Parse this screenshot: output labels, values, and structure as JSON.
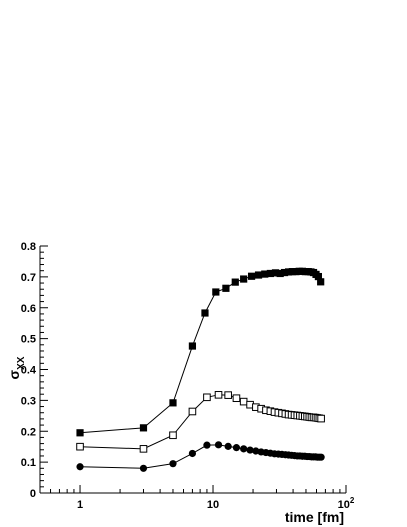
{
  "chart_data": {
    "type": "scatter",
    "xscale": "log",
    "xlim": [
      0.5,
      100
    ],
    "ylim": [
      0,
      0.8
    ],
    "xlabel": "time [fm]",
    "ylabel": "σ",
    "ylabel_sub": "XX",
    "x_ticks": [
      {
        "value": 1,
        "label": "1",
        "sup": ""
      },
      {
        "value": 10,
        "label": "10",
        "sup": ""
      },
      {
        "value": 100,
        "label": "10",
        "sup": "2"
      }
    ],
    "y_ticks": [
      {
        "value": 0,
        "label": "0"
      },
      {
        "value": 0.1,
        "label": "0.1"
      },
      {
        "value": 0.2,
        "label": "0.2"
      },
      {
        "value": 0.3,
        "label": "0.3"
      },
      {
        "value": 0.4,
        "label": "0.4"
      },
      {
        "value": 0.5,
        "label": "0.5"
      },
      {
        "value": 0.6,
        "label": "0.6"
      },
      {
        "value": 0.7,
        "label": "0.7"
      },
      {
        "value": 0.8,
        "label": "0.8"
      }
    ],
    "grid": false,
    "legend": "none",
    "series": [
      {
        "marker": "filled-square",
        "color": "#000000",
        "x": [
          1,
          3,
          5,
          7,
          8.7,
          10.5,
          12.5,
          14.7,
          17,
          19.5,
          22,
          24.5,
          27,
          29.5,
          32,
          34.5,
          37,
          39.5,
          42,
          44.5,
          47,
          49.5,
          52,
          54.5,
          57,
          59.5,
          62,
          64.5
        ],
        "y": [
          0.195,
          0.211,
          0.292,
          0.476,
          0.583,
          0.651,
          0.663,
          0.683,
          0.693,
          0.702,
          0.706,
          0.709,
          0.711,
          0.713,
          0.711,
          0.714,
          0.716,
          0.717,
          0.717,
          0.718,
          0.718,
          0.717,
          0.717,
          0.716,
          0.714,
          0.708,
          0.701,
          0.684
        ]
      },
      {
        "marker": "open-square",
        "color": "#000000",
        "x": [
          1,
          3,
          5,
          7,
          9,
          11,
          13,
          15,
          17,
          19,
          21,
          23,
          25,
          27,
          29,
          31,
          33,
          35,
          37,
          39,
          41,
          43,
          45,
          47,
          49,
          51,
          53,
          55,
          57,
          59,
          61,
          63,
          65
        ],
        "y": [
          0.15,
          0.143,
          0.187,
          0.264,
          0.31,
          0.318,
          0.317,
          0.307,
          0.296,
          0.286,
          0.278,
          0.273,
          0.268,
          0.265,
          0.262,
          0.26,
          0.258,
          0.256,
          0.254,
          0.253,
          0.252,
          0.251,
          0.25,
          0.249,
          0.248,
          0.247,
          0.246,
          0.245,
          0.245,
          0.244,
          0.243,
          0.242,
          0.241
        ]
      },
      {
        "marker": "filled-circle",
        "color": "#000000",
        "x": [
          1,
          3,
          5,
          7,
          9,
          11,
          13,
          15,
          17,
          19,
          21,
          23,
          25,
          27,
          29,
          31,
          33,
          35,
          37,
          39,
          41,
          43,
          45,
          47,
          49,
          51,
          53,
          55,
          57,
          59,
          61,
          63,
          65
        ],
        "y": [
          0.085,
          0.08,
          0.095,
          0.128,
          0.155,
          0.156,
          0.151,
          0.147,
          0.143,
          0.139,
          0.136,
          0.133,
          0.131,
          0.129,
          0.127,
          0.126,
          0.125,
          0.124,
          0.123,
          0.122,
          0.121,
          0.12,
          0.12,
          0.119,
          0.119,
          0.118,
          0.118,
          0.117,
          0.117,
          0.117,
          0.116,
          0.116,
          0.116
        ]
      }
    ]
  }
}
